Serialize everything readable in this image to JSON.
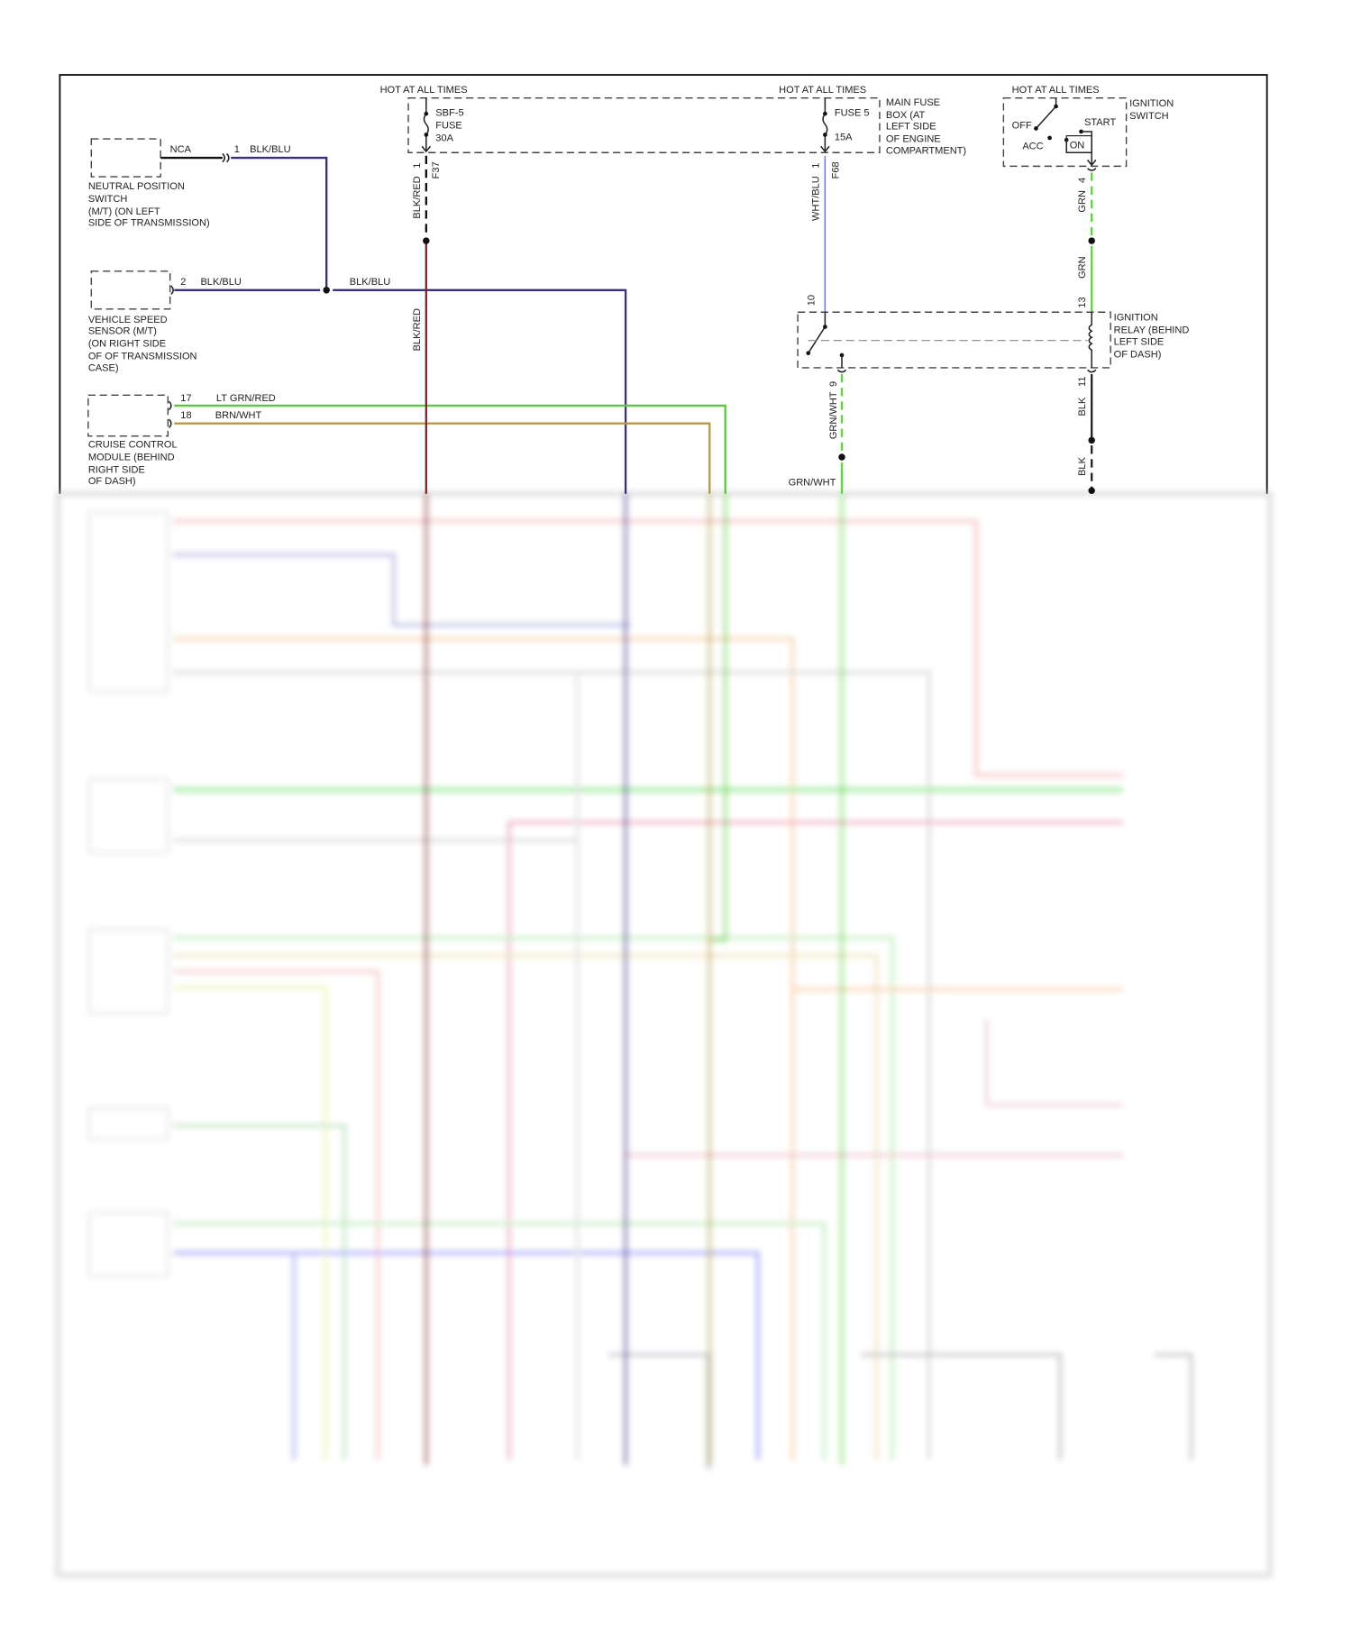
{
  "colors": {
    "blk_blu": "#3a2f7a",
    "blk_red": "#7a2a2a",
    "wht_blu": "#6a6ad8",
    "grn": "#5cd63a",
    "lt_grn_red": "#5cc83a",
    "brn_wht": "#b89a40",
    "blk": "#222222"
  },
  "power": {
    "hot1": "HOT AT ALL TIMES",
    "hot2": "HOT AT ALL TIMES",
    "hot3": "HOT AT ALL TIMES",
    "sbf_fuse": [
      "SBF-5",
      "FUSE",
      "30A"
    ],
    "fuse5": [
      "FUSE 5",
      "15A"
    ],
    "main_fuse_box": [
      "MAIN FUSE",
      "BOX (AT",
      "LEFT SIDE",
      "OF ENGINE",
      "COMPARTMENT)"
    ],
    "ignition_switch": [
      "IGNITION",
      "SWITCH"
    ],
    "switch_positions": {
      "off": "OFF",
      "acc": "ACC",
      "start": "START",
      "on": "ON"
    }
  },
  "components": {
    "neutral_switch": {
      "label": [
        "NEUTRAL POSITION",
        "SWITCH",
        "(M/T) (ON LEFT",
        "SIDE OF TRANSMISSION)"
      ],
      "nca": "NCA",
      "pin": "1",
      "wire": "BLK/BLU"
    },
    "vss": {
      "label": [
        "VEHICLE SPEED",
        "SENSOR (M/T)",
        "(ON RIGHT SIDE",
        "OF OF TRANSMISSION",
        "CASE)"
      ],
      "pin": "2",
      "wire": "BLK/BLU",
      "wire2": "BLK/BLU"
    },
    "cruise_module": {
      "label": [
        "CRUISE CONTROL",
        "MODULE (BEHIND",
        "RIGHT SIDE",
        "OF DASH)"
      ],
      "pin17": "17",
      "wire17": "LT GRN/RED",
      "pin18": "18",
      "wire18": "BRN/WHT"
    },
    "ignition_relay": {
      "label": [
        "IGNITION",
        "RELAY (BEHIND",
        "LEFT SIDE",
        "OF DASH)"
      ],
      "pin10": "10",
      "pin13": "13",
      "pin9": "9",
      "pin11": "11"
    }
  },
  "wires": {
    "blk_red_pin": "1",
    "blk_red_conn": "F37",
    "blk_red_1": "BLK/RED",
    "blk_red_2": "BLK/RED",
    "wht_blu_pin": "1",
    "wht_blu_conn": "F68",
    "wht_blu": "WHT/BLU",
    "grn_pin": "4",
    "grn_1": "GRN",
    "grn_2": "GRN",
    "grn_wht_1": "GRN/WHT",
    "grn_wht_2": "GRN/WHT",
    "blk_1": "BLK",
    "blk_2": "BLK"
  }
}
